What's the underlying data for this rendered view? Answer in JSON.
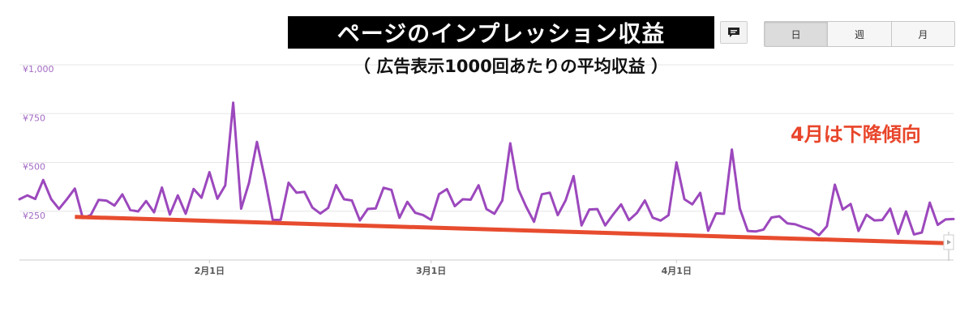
{
  "header": {
    "title": "ページのインプレッション収益",
    "subtitle": "（ 広告表示1000回あたりの平均収益 ）"
  },
  "toolbar": {
    "annotation_icon": "speech-bubble-icon",
    "granularity_options": [
      "日",
      "週",
      "月"
    ],
    "selected_granularity": "日"
  },
  "annotation": {
    "text": "4月は下降傾向",
    "color": "#e8452a"
  },
  "chart_data": {
    "type": "line",
    "title": "",
    "xlabel": "",
    "ylabel": "",
    "ylim": [
      0,
      1000
    ],
    "y_ticks": [
      250,
      500,
      750,
      1000
    ],
    "y_tick_labels": [
      "¥250",
      "¥500",
      "¥750",
      "¥1,000"
    ],
    "x_ticks": [
      {
        "index": 24,
        "label": "2月1日"
      },
      {
        "index": 52,
        "label": "3月1日"
      },
      {
        "index": 83,
        "label": "4月1日"
      }
    ],
    "grid": true,
    "series": [
      {
        "color": "#9c48bd",
        "values": [
          311,
          331,
          313,
          410,
          312,
          262,
          312,
          366,
          215,
          230,
          308,
          304,
          279,
          336,
          256,
          249,
          302,
          244,
          371,
          233,
          331,
          237,
          364,
          319,
          450,
          314,
          382,
          806,
          263,
          395,
          605,
          418,
          205,
          206,
          396,
          345,
          349,
          269,
          238,
          267,
          384,
          311,
          305,
          203,
          262,
          264,
          370,
          359,
          216,
          298,
          242,
          230,
          206,
          337,
          363,
          276,
          311,
          309,
          383,
          261,
          237,
          305,
          598,
          364,
          274,
          196,
          337,
          345,
          230,
          306,
          430,
          177,
          259,
          261,
          177,
          233,
          285,
          204,
          241,
          305,
          217,
          202,
          230,
          500,
          311,
          285,
          344,
          150,
          239,
          237,
          566,
          264,
          149,
          146,
          156,
          218,
          224,
          188,
          183,
          168,
          155,
          127,
          173,
          386,
          259,
          287,
          149,
          232,
          203,
          205,
          263,
          134,
          249,
          131,
          141,
          294,
          180,
          208,
          210
        ]
      }
    ],
    "trend_line": {
      "color": "#e74c2e",
      "start_index": 7,
      "start_value": 221,
      "end_index": 118,
      "end_value": 85
    }
  }
}
